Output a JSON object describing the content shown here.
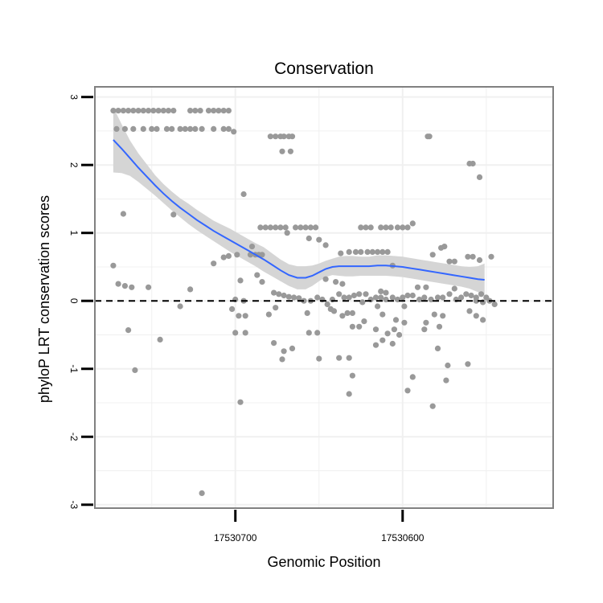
{
  "chart_data": {
    "type": "scatter",
    "title": "Conservation",
    "xlabel": "Genomic Position",
    "ylabel": "phyloP LRT conservation scores",
    "x_reversed": true,
    "xlim": [
      17530784,
      17530510
    ],
    "ylim": [
      -3.05,
      3.15
    ],
    "x_ticks": [
      17530700,
      17530600
    ],
    "x_tick_labels": [
      "17530700",
      "17530600"
    ],
    "y_ticks": [
      -3,
      -2,
      -1,
      0,
      1,
      2,
      3
    ],
    "y_tick_labels": [
      "-3",
      "-2",
      "-1",
      "0",
      "1",
      "2",
      "3"
    ],
    "grid": true,
    "reference_line": {
      "y": 0,
      "style": "dashed",
      "color": "#000000"
    },
    "point_color": "#999999",
    "smooth_color": "#3366ff",
    "ribbon_color": "#d3d3d3",
    "points": [
      [
        17530773,
        2.8
      ],
      [
        17530770,
        2.8
      ],
      [
        17530767,
        2.8
      ],
      [
        17530764,
        2.8
      ],
      [
        17530761,
        2.8
      ],
      [
        17530758,
        2.8
      ],
      [
        17530755,
        2.8
      ],
      [
        17530752,
        2.8
      ],
      [
        17530749,
        2.8
      ],
      [
        17530746,
        2.8
      ],
      [
        17530743,
        2.8
      ],
      [
        17530740,
        2.8
      ],
      [
        17530737,
        2.8
      ],
      [
        17530727,
        2.8
      ],
      [
        17530724,
        2.8
      ],
      [
        17530721,
        2.8
      ],
      [
        17530716,
        2.8
      ],
      [
        17530713,
        2.8
      ],
      [
        17530710,
        2.8
      ],
      [
        17530707,
        2.8
      ],
      [
        17530704,
        2.8
      ],
      [
        17530771,
        2.53
      ],
      [
        17530766,
        2.53
      ],
      [
        17530761,
        2.53
      ],
      [
        17530755,
        2.53
      ],
      [
        17530750,
        2.53
      ],
      [
        17530747,
        2.53
      ],
      [
        17530741,
        2.53
      ],
      [
        17530738,
        2.53
      ],
      [
        17530733,
        2.53
      ],
      [
        17530730,
        2.53
      ],
      [
        17530727,
        2.53
      ],
      [
        17530724,
        2.53
      ],
      [
        17530720,
        2.53
      ],
      [
        17530713,
        2.53
      ],
      [
        17530707,
        2.53
      ],
      [
        17530704,
        2.53
      ],
      [
        17530701,
        2.49
      ],
      [
        17530679,
        2.42
      ],
      [
        17530676,
        2.42
      ],
      [
        17530673,
        2.42
      ],
      [
        17530671,
        2.42
      ],
      [
        17530668,
        2.42
      ],
      [
        17530666,
        2.42
      ],
      [
        17530672,
        2.2
      ],
      [
        17530667,
        2.2
      ],
      [
        17530585,
        2.42
      ],
      [
        17530584,
        2.42
      ],
      [
        17530560,
        2.02
      ],
      [
        17530558,
        2.02
      ],
      [
        17530554,
        1.82
      ],
      [
        17530695,
        1.57
      ],
      [
        17530767,
        1.28
      ],
      [
        17530737,
        1.27
      ],
      [
        17530594,
        1.14
      ],
      [
        17530685,
        1.08
      ],
      [
        17530682,
        1.08
      ],
      [
        17530679,
        1.08
      ],
      [
        17530676,
        1.08
      ],
      [
        17530673,
        1.08
      ],
      [
        17530670,
        1.08
      ],
      [
        17530664,
        1.08
      ],
      [
        17530661,
        1.08
      ],
      [
        17530658,
        1.08
      ],
      [
        17530655,
        1.08
      ],
      [
        17530652,
        1.08
      ],
      [
        17530625,
        1.08
      ],
      [
        17530622,
        1.08
      ],
      [
        17530619,
        1.08
      ],
      [
        17530613,
        1.08
      ],
      [
        17530610,
        1.08
      ],
      [
        17530607,
        1.08
      ],
      [
        17530603,
        1.08
      ],
      [
        17530600,
        1.08
      ],
      [
        17530597,
        1.08
      ],
      [
        17530669,
        1.0
      ],
      [
        17530656,
        0.92
      ],
      [
        17530650,
        0.9
      ],
      [
        17530646,
        0.82
      ],
      [
        17530690,
        0.8
      ],
      [
        17530637,
        0.7
      ],
      [
        17530632,
        0.72
      ],
      [
        17530628,
        0.72
      ],
      [
        17530625,
        0.72
      ],
      [
        17530621,
        0.72
      ],
      [
        17530618,
        0.72
      ],
      [
        17530615,
        0.72
      ],
      [
        17530612,
        0.72
      ],
      [
        17530609,
        0.72
      ],
      [
        17530691,
        0.68
      ],
      [
        17530688,
        0.68
      ],
      [
        17530686,
        0.68
      ],
      [
        17530684,
        0.68
      ],
      [
        17530704,
        0.66
      ],
      [
        17530707,
        0.64
      ],
      [
        17530699,
        0.68
      ],
      [
        17530582,
        0.68
      ],
      [
        17530577,
        0.78
      ],
      [
        17530575,
        0.8
      ],
      [
        17530572,
        0.58
      ],
      [
        17530569,
        0.58
      ],
      [
        17530561,
        0.65
      ],
      [
        17530558,
        0.65
      ],
      [
        17530554,
        0.6
      ],
      [
        17530547,
        0.65
      ],
      [
        17530713,
        0.55
      ],
      [
        17530606,
        0.52
      ],
      [
        17530773,
        0.52
      ],
      [
        17530770,
        0.25
      ],
      [
        17530766,
        0.22
      ],
      [
        17530762,
        0.2
      ],
      [
        17530752,
        0.2
      ],
      [
        17530687,
        0.38
      ],
      [
        17530684,
        0.28
      ],
      [
        17530727,
        0.17
      ],
      [
        17530697,
        0.3
      ],
      [
        17530646,
        0.32
      ],
      [
        17530640,
        0.28
      ],
      [
        17530636,
        0.25
      ],
      [
        17530613,
        0.14
      ],
      [
        17530610,
        0.12
      ],
      [
        17530591,
        0.2
      ],
      [
        17530586,
        0.2
      ],
      [
        17530569,
        0.18
      ],
      [
        17530700,
        0.02
      ],
      [
        17530695,
        0.0
      ],
      [
        17530677,
        0.12
      ],
      [
        17530674,
        0.1
      ],
      [
        17530671,
        0.08
      ],
      [
        17530668,
        0.06
      ],
      [
        17530665,
        0.05
      ],
      [
        17530662,
        0.04
      ],
      [
        17530659,
        0.0
      ],
      [
        17530655,
        0.0
      ],
      [
        17530651,
        0.05
      ],
      [
        17530648,
        0.02
      ],
      [
        17530645,
        -0.05
      ],
      [
        17530642,
        0.02
      ],
      [
        17530638,
        0.1
      ],
      [
        17530635,
        0.05
      ],
      [
        17530632,
        0.05
      ],
      [
        17530629,
        0.08
      ],
      [
        17530626,
        0.1
      ],
      [
        17530622,
        0.1
      ],
      [
        17530619,
        0.02
      ],
      [
        17530616,
        0.05
      ],
      [
        17530613,
        0.05
      ],
      [
        17530610,
        0.02
      ],
      [
        17530606,
        0.05
      ],
      [
        17530603,
        0.02
      ],
      [
        17530600,
        0.05
      ],
      [
        17530597,
        0.08
      ],
      [
        17530594,
        0.08
      ],
      [
        17530590,
        0.02
      ],
      [
        17530587,
        0.05
      ],
      [
        17530583,
        0.02
      ],
      [
        17530579,
        0.05
      ],
      [
        17530576,
        0.05
      ],
      [
        17530572,
        0.1
      ],
      [
        17530568,
        0.02
      ],
      [
        17530565,
        0.05
      ],
      [
        17530562,
        0.1
      ],
      [
        17530559,
        0.08
      ],
      [
        17530556,
        0.05
      ],
      [
        17530553,
        0.1
      ],
      [
        17530550,
        0.05
      ],
      [
        17530556,
        0.0
      ],
      [
        17530552,
        -0.02
      ],
      [
        17530548,
        0.0
      ],
      [
        17530545,
        -0.05
      ],
      [
        17530733,
        -0.08
      ],
      [
        17530702,
        -0.12
      ],
      [
        17530676,
        -0.1
      ],
      [
        17530643,
        -0.12
      ],
      [
        17530641,
        -0.15
      ],
      [
        17530624,
        -0.02
      ],
      [
        17530615,
        -0.08
      ],
      [
        17530599,
        -0.08
      ],
      [
        17530581,
        -0.2
      ],
      [
        17530576,
        -0.22
      ],
      [
        17530560,
        -0.15
      ],
      [
        17530556,
        -0.22
      ],
      [
        17530552,
        -0.28
      ],
      [
        17530698,
        -0.22
      ],
      [
        17530694,
        -0.22
      ],
      [
        17530680,
        -0.2
      ],
      [
        17530657,
        -0.18
      ],
      [
        17530636,
        -0.22
      ],
      [
        17530633,
        -0.18
      ],
      [
        17530630,
        -0.18
      ],
      [
        17530623,
        -0.3
      ],
      [
        17530612,
        -0.2
      ],
      [
        17530604,
        -0.28
      ],
      [
        17530586,
        -0.32
      ],
      [
        17530578,
        -0.38
      ],
      [
        17530700,
        -0.47
      ],
      [
        17530694,
        -0.47
      ],
      [
        17530656,
        -0.47
      ],
      [
        17530651,
        -0.47
      ],
      [
        17530630,
        -0.38
      ],
      [
        17530626,
        -0.38
      ],
      [
        17530616,
        -0.42
      ],
      [
        17530609,
        -0.48
      ],
      [
        17530605,
        -0.42
      ],
      [
        17530599,
        -0.32
      ],
      [
        17530587,
        -0.42
      ],
      [
        17530764,
        -0.43
      ],
      [
        17530745,
        -0.57
      ],
      [
        17530671,
        -0.74
      ],
      [
        17530666,
        -0.7
      ],
      [
        17530650,
        -0.85
      ],
      [
        17530616,
        -0.65
      ],
      [
        17530612,
        -0.58
      ],
      [
        17530606,
        -0.63
      ],
      [
        17530602,
        -0.5
      ],
      [
        17530579,
        -0.7
      ],
      [
        17530573,
        -0.95
      ],
      [
        17530638,
        -0.84
      ],
      [
        17530632,
        -0.84
      ],
      [
        17530677,
        -0.62
      ],
      [
        17530760,
        -1.02
      ],
      [
        17530672,
        -0.86
      ],
      [
        17530630,
        -1.1
      ],
      [
        17530594,
        -1.12
      ],
      [
        17530574,
        -1.17
      ],
      [
        17530561,
        -0.93
      ],
      [
        17530597,
        -1.32
      ],
      [
        17530632,
        -1.37
      ],
      [
        17530697,
        -1.49
      ],
      [
        17530582,
        -1.55
      ],
      [
        17530720,
        -2.83
      ]
    ],
    "smooth": {
      "x": [
        17530773,
        17530768,
        17530763,
        17530758,
        17530753,
        17530748,
        17530743,
        17530738,
        17530733,
        17530728,
        17530723,
        17530718,
        17530713,
        17530708,
        17530703,
        17530698,
        17530693,
        17530688,
        17530683,
        17530678,
        17530673,
        17530668,
        17530663,
        17530658,
        17530654,
        17530650,
        17530646,
        17530642,
        17530638,
        17530634,
        17530630,
        17530625,
        17530620,
        17530615,
        17530610,
        17530605,
        17530600,
        17530595,
        17530590,
        17530585,
        17530580,
        17530575,
        17530570,
        17530565,
        17530560,
        17530555,
        17530551
      ],
      "y": [
        2.37,
        2.24,
        2.1,
        1.96,
        1.83,
        1.7,
        1.58,
        1.47,
        1.37,
        1.28,
        1.19,
        1.11,
        1.03,
        0.96,
        0.89,
        0.82,
        0.75,
        0.68,
        0.61,
        0.53,
        0.45,
        0.38,
        0.34,
        0.34,
        0.37,
        0.42,
        0.47,
        0.5,
        0.51,
        0.51,
        0.51,
        0.51,
        0.51,
        0.52,
        0.52,
        0.51,
        0.5,
        0.48,
        0.46,
        0.44,
        0.42,
        0.4,
        0.38,
        0.36,
        0.34,
        0.32,
        0.31
      ],
      "lower": [
        1.89,
        1.88,
        1.84,
        1.75,
        1.65,
        1.55,
        1.44,
        1.33,
        1.23,
        1.13,
        1.04,
        0.96,
        0.88,
        0.8,
        0.72,
        0.65,
        0.58,
        0.51,
        0.43,
        0.36,
        0.29,
        0.22,
        0.17,
        0.17,
        0.22,
        0.29,
        0.35,
        0.38,
        0.37,
        0.36,
        0.36,
        0.37,
        0.37,
        0.37,
        0.37,
        0.36,
        0.35,
        0.33,
        0.31,
        0.29,
        0.27,
        0.25,
        0.23,
        0.21,
        0.18,
        0.13,
        0.07
      ],
      "upper": [
        2.85,
        2.6,
        2.36,
        2.17,
        2.01,
        1.85,
        1.72,
        1.61,
        1.51,
        1.43,
        1.34,
        1.26,
        1.18,
        1.12,
        1.06,
        0.99,
        0.92,
        0.85,
        0.79,
        0.7,
        0.61,
        0.54,
        0.51,
        0.51,
        0.52,
        0.55,
        0.59,
        0.62,
        0.65,
        0.66,
        0.66,
        0.65,
        0.65,
        0.67,
        0.67,
        0.66,
        0.65,
        0.63,
        0.61,
        0.59,
        0.57,
        0.55,
        0.53,
        0.51,
        0.5,
        0.51,
        0.55
      ]
    }
  }
}
